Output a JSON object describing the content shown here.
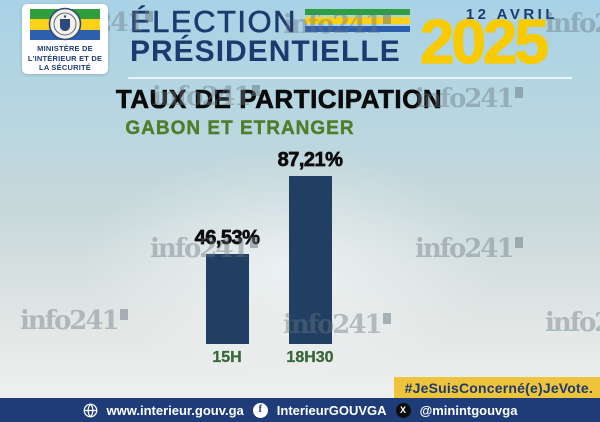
{
  "header": {
    "ministry": {
      "line1": "MINISTÈRE DE",
      "line2": "L'INTÉRIEUR ET DE",
      "line3": "LA SÉCURITÉ"
    },
    "title_line1": "ÉLECTION",
    "title_line2": "PRÉSIDENTIELLE",
    "date_label": "12 AVRIL",
    "year": "2025",
    "colors": {
      "navy": "#1d3a6e",
      "year_yellow": "#f8ca00",
      "flag_green": "#2f9e3f",
      "flag_yellow": "#fcd116",
      "flag_blue": "#2d5fae"
    }
  },
  "main": {
    "title": "TAUX DE PARTICIPATION",
    "subtitle": "GABON ET ETRANGER"
  },
  "chart_data": {
    "type": "bar",
    "title": "TAUX DE PARTICIPATION",
    "subtitle": "GABON ET ETRANGER",
    "categories": [
      "15H",
      "18H30"
    ],
    "values": [
      46.53,
      87.21
    ],
    "value_labels": [
      "46,53%",
      "87,21%"
    ],
    "bar_color": "#213e63",
    "ylim": [
      0,
      100
    ],
    "grid": false,
    "legend": false
  },
  "hashtag_badge": {
    "text": "#JeSuisConcerné(e)JeVote.",
    "bg": "#edc43c",
    "fg": "#1d3a6e"
  },
  "footer": {
    "bg": "#1e3d78",
    "website": "www.interieur.gouv.ga",
    "facebook": "InterieurGOUVGA",
    "x_handle": "@minintgouvga",
    "facebook_icon_letter": "f",
    "x_icon_letter": "X"
  },
  "watermark": {
    "text": "info241"
  }
}
